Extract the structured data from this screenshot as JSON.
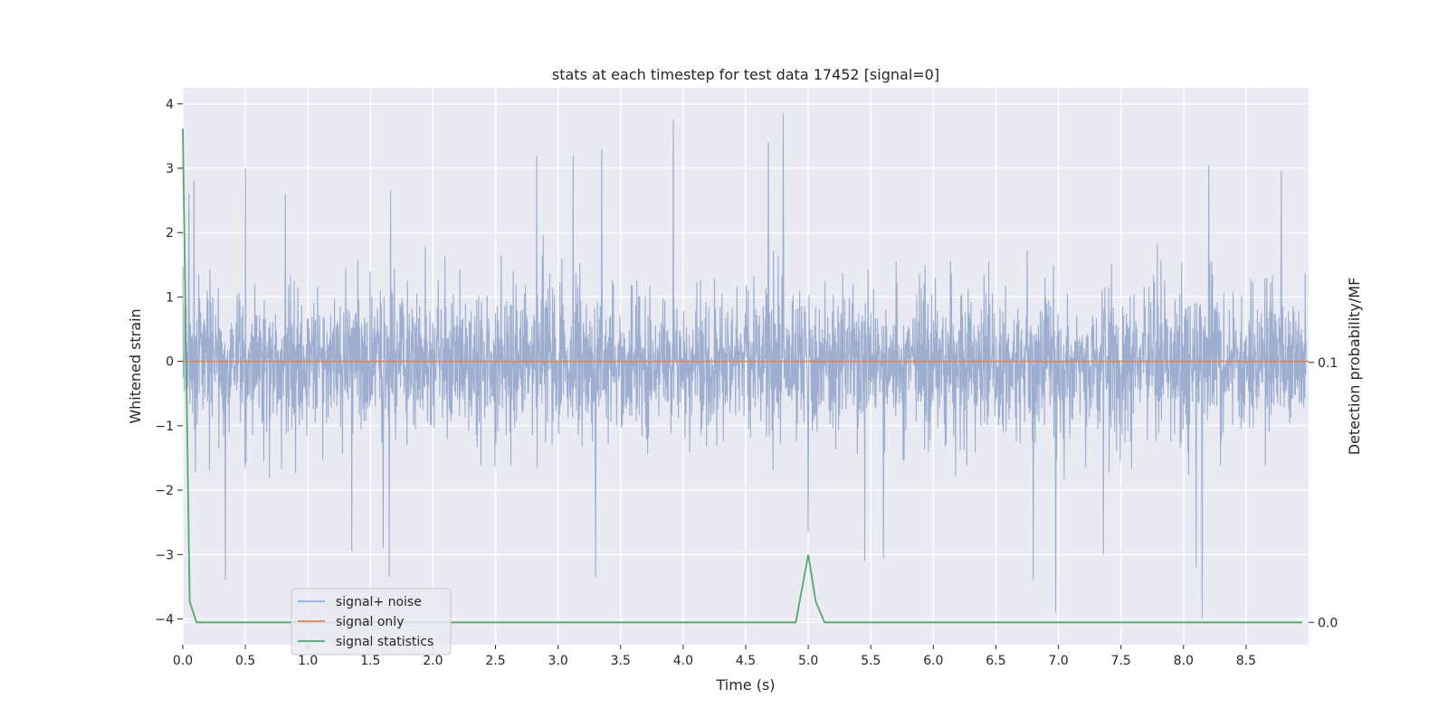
{
  "chart_data": {
    "type": "line",
    "title": "stats at each timestep for test data 17452 [signal=0]",
    "xlabel": "Time (s)",
    "ylabel": "Whitened strain",
    "y2label": "Detection probability/MF",
    "xlim": [
      0.0,
      9.0
    ],
    "ylim": [
      -4.4,
      4.25
    ],
    "y2lim": [
      -0.0086,
      0.2057
    ],
    "x_ticks": [
      "0.0",
      "0.5",
      "1.0",
      "1.5",
      "2.0",
      "2.5",
      "3.0",
      "3.5",
      "4.0",
      "4.5",
      "5.0",
      "5.5",
      "6.0",
      "6.5",
      "7.0",
      "7.5",
      "8.0",
      "8.5"
    ],
    "y_ticks": [
      "4",
      "3",
      "2",
      "1",
      "0",
      "−1",
      "−2",
      "−3",
      "−4"
    ],
    "y2_ticks": [
      "0.1",
      "0.0"
    ],
    "grid": true,
    "legend_position": "lower-left",
    "series": [
      {
        "name": "signal+ noise",
        "color": "#99abce",
        "axis": "left",
        "description": "dense noisy strain, roughly |y| < 2 with spikes",
        "spikes": [
          {
            "x": 0.05,
            "y": 2.6
          },
          {
            "x": 0.09,
            "y": 2.8
          },
          {
            "x": 0.34,
            "y": -3.4
          },
          {
            "x": 0.5,
            "y": 3.0
          },
          {
            "x": 0.82,
            "y": 2.6
          },
          {
            "x": 1.35,
            "y": -2.95
          },
          {
            "x": 1.6,
            "y": -2.9
          },
          {
            "x": 1.65,
            "y": -3.35
          },
          {
            "x": 1.66,
            "y": 2.65
          },
          {
            "x": 2.83,
            "y": 3.2
          },
          {
            "x": 3.12,
            "y": 3.2
          },
          {
            "x": 3.3,
            "y": -3.35
          },
          {
            "x": 3.35,
            "y": 3.3
          },
          {
            "x": 3.92,
            "y": 3.75
          },
          {
            "x": 4.68,
            "y": 3.4
          },
          {
            "x": 4.8,
            "y": 3.85
          },
          {
            "x": 5.0,
            "y": -2.65
          },
          {
            "x": 5.45,
            "y": -3.1
          },
          {
            "x": 5.6,
            "y": -3.05
          },
          {
            "x": 6.8,
            "y": -3.4
          },
          {
            "x": 6.98,
            "y": -3.9
          },
          {
            "x": 7.36,
            "y": -3.0
          },
          {
            "x": 8.1,
            "y": -3.2
          },
          {
            "x": 8.15,
            "y": -4.0
          },
          {
            "x": 8.2,
            "y": 3.05
          },
          {
            "x": 8.78,
            "y": 2.95
          }
        ]
      },
      {
        "name": "signal only",
        "color": "#dd8452",
        "axis": "left",
        "x": [
          0.0,
          9.0
        ],
        "y": [
          0.0,
          0.0
        ]
      },
      {
        "name": "signal statistics",
        "color": "#55a868",
        "axis": "right",
        "x": [
          0.0,
          0.055,
          0.11,
          4.9,
          5.0,
          5.06,
          5.13,
          8.95
        ],
        "y": [
          0.19,
          0.008,
          0.0,
          0.0,
          0.026,
          0.008,
          0.0,
          0.0
        ]
      }
    ]
  }
}
